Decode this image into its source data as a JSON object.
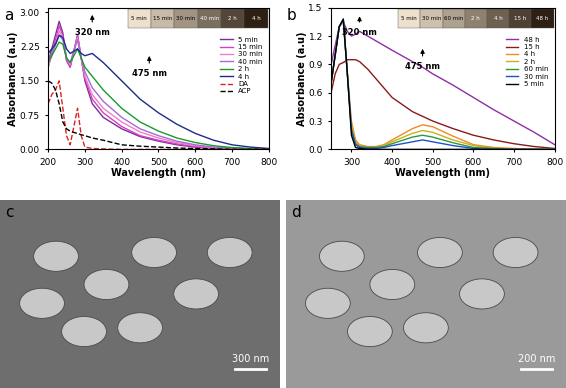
{
  "chart_data": [
    {
      "type": "line",
      "title": "a",
      "xlabel": "Wavelength (nm)",
      "ylabel": "Absorbance (a.u)",
      "xlim": [
        200,
        800
      ],
      "xticks": [
        200,
        300,
        400,
        500,
        600,
        700,
        800
      ],
      "ylim": [
        0,
        3.1
      ],
      "yticks": [
        {
          "value": 0,
          "label": "0.00"
        },
        {
          "value": 0.75,
          "label": "0.75"
        },
        {
          "value": 1.5,
          "label": "1.50"
        },
        {
          "value": 2.25,
          "label": "2.25"
        },
        {
          "value": 3.0,
          "label": "3.00"
        }
      ],
      "legend": "upper right",
      "x": [
        200,
        210,
        220,
        230,
        240,
        250,
        260,
        270,
        280,
        290,
        300,
        320,
        350,
        400,
        450,
        500,
        550,
        600,
        650,
        700,
        750,
        800
      ],
      "series": [
        {
          "name": "5 min",
          "color": "#7b2d9b",
          "line_style": "solid",
          "values": [
            1.9,
            2.2,
            2.5,
            2.8,
            2.55,
            1.95,
            1.8,
            2.15,
            2.5,
            2.0,
            1.5,
            1.0,
            0.7,
            0.45,
            0.28,
            0.18,
            0.1,
            0.05,
            0.03,
            0.01,
            0.0,
            0.0
          ]
        },
        {
          "name": "15 min",
          "color": "#d63fbf",
          "line_style": "solid",
          "values": [
            1.8,
            2.1,
            2.4,
            2.7,
            2.5,
            1.95,
            1.8,
            2.15,
            2.5,
            2.0,
            1.55,
            1.1,
            0.8,
            0.5,
            0.3,
            0.2,
            0.12,
            0.06,
            0.03,
            0.02,
            0.01,
            0.0
          ]
        },
        {
          "name": "30 min",
          "color": "#ee7fc8",
          "line_style": "solid",
          "values": [
            1.8,
            2.05,
            2.3,
            2.6,
            2.45,
            2.0,
            1.85,
            2.15,
            2.45,
            2.0,
            1.6,
            1.2,
            0.9,
            0.6,
            0.38,
            0.25,
            0.15,
            0.08,
            0.04,
            0.02,
            0.01,
            0.0
          ]
        },
        {
          "name": "40 min",
          "color": "#a66ad8",
          "line_style": "solid",
          "values": [
            1.9,
            2.1,
            2.3,
            2.5,
            2.4,
            2.0,
            1.9,
            2.15,
            2.4,
            2.0,
            1.7,
            1.35,
            1.05,
            0.7,
            0.45,
            0.3,
            0.18,
            0.1,
            0.05,
            0.03,
            0.01,
            0.0
          ]
        },
        {
          "name": "2 h",
          "color": "#1a9b2a",
          "line_style": "solid",
          "values": [
            1.9,
            2.05,
            2.2,
            2.35,
            2.3,
            2.0,
            1.9,
            2.05,
            2.2,
            2.0,
            1.8,
            1.6,
            1.3,
            0.9,
            0.6,
            0.4,
            0.25,
            0.15,
            0.08,
            0.04,
            0.02,
            0.01
          ]
        },
        {
          "name": "4 h",
          "color": "#1c2b8c",
          "line_style": "solid",
          "values": [
            2.1,
            2.2,
            2.3,
            2.5,
            2.45,
            2.2,
            2.1,
            2.15,
            2.2,
            2.1,
            2.05,
            2.1,
            1.9,
            1.5,
            1.1,
            0.8,
            0.55,
            0.35,
            0.2,
            0.1,
            0.05,
            0.02
          ]
        },
        {
          "name": "DA",
          "color": "#e02020",
          "line_style": "dashed",
          "values": [
            1.0,
            1.2,
            1.3,
            1.5,
            0.9,
            0.3,
            0.1,
            0.5,
            0.9,
            0.3,
            0.05,
            0.02,
            0.01,
            0.0,
            0.0,
            0.0,
            0.0,
            0.0,
            0.0,
            0.0,
            0.0,
            0.0
          ]
        },
        {
          "name": "ACP",
          "color": "#000000",
          "line_style": "dashed",
          "values": [
            1.5,
            1.45,
            1.3,
            1.0,
            0.6,
            0.45,
            0.4,
            0.37,
            0.35,
            0.32,
            0.3,
            0.25,
            0.2,
            0.1,
            0.07,
            0.05,
            0.03,
            0.02,
            0.01,
            0.0,
            0.0,
            0.0
          ]
        }
      ],
      "annotations": [
        {
          "text": "320 nm",
          "x": 320
        },
        {
          "text": "475 nm",
          "x": 475
        }
      ],
      "inset_labels": [
        "5 min",
        "15 min",
        "30 min",
        "40 min",
        "2 h",
        "4 h"
      ]
    },
    {
      "type": "line",
      "title": "b",
      "xlabel": "Wavelength (nm)",
      "ylabel": "Absorbance (a.u)",
      "xlim": [
        250,
        800
      ],
      "xticks": [
        300,
        400,
        500,
        600,
        700,
        800
      ],
      "ylim": [
        0,
        1.5
      ],
      "yticks": [
        0.0,
        0.3,
        0.6,
        0.9,
        1.2,
        1.5
      ],
      "legend": "upper right",
      "x": [
        250,
        260,
        270,
        280,
        290,
        300,
        310,
        320,
        340,
        360,
        380,
        400,
        450,
        475,
        500,
        550,
        600,
        650,
        700,
        750,
        800
      ],
      "series": [
        {
          "name": "48 h",
          "color": "#8e2fa3",
          "line_style": "solid",
          "values": [
            0.9,
            1.1,
            1.3,
            1.35,
            1.25,
            1.2,
            1.22,
            1.25,
            1.2,
            1.15,
            1.1,
            1.05,
            0.93,
            0.87,
            0.8,
            0.68,
            0.55,
            0.42,
            0.3,
            0.18,
            0.05
          ]
        },
        {
          "name": "15 h",
          "color": "#8b1a1a",
          "line_style": "solid",
          "values": [
            0.6,
            0.8,
            0.9,
            0.92,
            0.95,
            0.95,
            0.95,
            0.93,
            0.85,
            0.75,
            0.65,
            0.55,
            0.4,
            0.35,
            0.3,
            0.22,
            0.15,
            0.1,
            0.06,
            0.03,
            0.01
          ]
        },
        {
          "name": "4 h",
          "color": "#f08a24",
          "line_style": "solid",
          "values": [
            0.7,
            1.0,
            1.3,
            1.35,
            0.8,
            0.3,
            0.1,
            0.05,
            0.03,
            0.03,
            0.05,
            0.1,
            0.22,
            0.26,
            0.24,
            0.14,
            0.05,
            0.02,
            0.01,
            0.0,
            0.0
          ]
        },
        {
          "name": "2 h",
          "color": "#c8b21e",
          "line_style": "solid",
          "values": [
            0.7,
            1.0,
            1.3,
            1.37,
            0.8,
            0.25,
            0.08,
            0.04,
            0.02,
            0.02,
            0.04,
            0.08,
            0.17,
            0.2,
            0.18,
            0.1,
            0.04,
            0.01,
            0.0,
            0.0,
            0.0
          ]
        },
        {
          "name": "60 min",
          "color": "#2a9b3a",
          "line_style": "solid",
          "values": [
            0.7,
            1.0,
            1.3,
            1.37,
            0.8,
            0.22,
            0.06,
            0.03,
            0.02,
            0.02,
            0.03,
            0.06,
            0.13,
            0.15,
            0.13,
            0.07,
            0.02,
            0.01,
            0.0,
            0.0,
            0.0
          ]
        },
        {
          "name": "30 min",
          "color": "#2050c8",
          "line_style": "solid",
          "values": [
            0.7,
            1.0,
            1.3,
            1.38,
            0.8,
            0.2,
            0.05,
            0.02,
            0.01,
            0.01,
            0.02,
            0.04,
            0.08,
            0.1,
            0.08,
            0.04,
            0.01,
            0.0,
            0.0,
            0.0,
            0.0
          ]
        },
        {
          "name": "5 min",
          "color": "#000000",
          "line_style": "solid",
          "values": [
            0.7,
            1.0,
            1.3,
            1.38,
            0.8,
            0.15,
            0.02,
            0.01,
            0.0,
            0.0,
            0.0,
            0.0,
            0.0,
            0.0,
            0.0,
            0.0,
            0.0,
            0.0,
            0.0,
            0.0,
            0.0
          ]
        }
      ],
      "annotations": [
        {
          "text": "320 nm",
          "x": 320
        },
        {
          "text": "475 nm",
          "x": 475
        }
      ],
      "inset_labels": [
        "5 min",
        "30 min",
        "60 min",
        "2 h",
        "4 h",
        "15 h",
        "48 h"
      ]
    }
  ],
  "images": [
    {
      "label": "c",
      "scale_bar": "300 nm"
    },
    {
      "label": "d",
      "scale_bar": "200 nm"
    }
  ]
}
